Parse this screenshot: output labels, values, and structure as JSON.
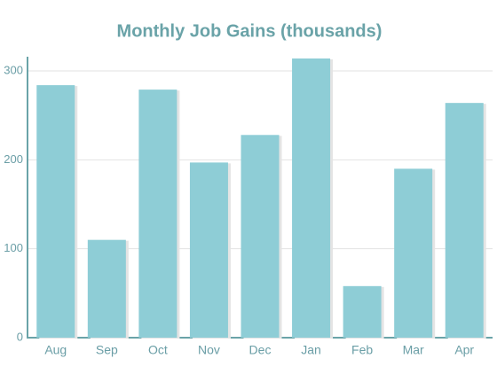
{
  "chart_data": {
    "type": "bar",
    "title": "Monthly Job Gains (thousands)",
    "categories": [
      "Aug",
      "Sep",
      "Oct",
      "Nov",
      "Dec",
      "Jan",
      "Feb",
      "Mar",
      "Apr"
    ],
    "values": [
      284,
      110,
      279,
      197,
      228,
      314,
      58,
      190,
      264
    ],
    "color": "#8ecdd6",
    "ylim": [
      0,
      316
    ],
    "yticks": [
      0,
      100,
      200,
      300
    ],
    "grid": true
  }
}
